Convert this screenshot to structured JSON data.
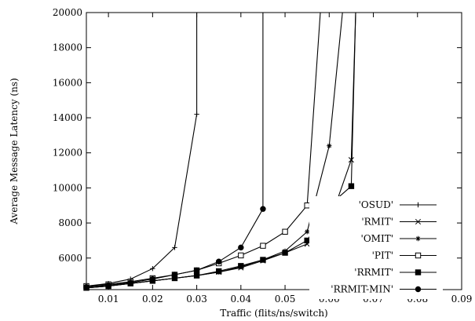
{
  "chart_data": {
    "type": "line",
    "title": "",
    "xlabel": "Traffic (flits/ns/switch)",
    "ylabel": "Average Message Latency (ns)",
    "xlim": [
      0.005,
      0.09
    ],
    "ylim": [
      4200,
      20000
    ],
    "xticks": [
      0.01,
      0.02,
      0.03,
      0.04,
      0.05,
      0.06,
      0.07,
      0.08,
      0.09
    ],
    "xtick_labels": [
      "0.01",
      "0.02",
      "0.03",
      "0.04",
      "0.05",
      "0.06",
      "0.07",
      "0.08",
      "0.09"
    ],
    "yticks": [
      6000,
      8000,
      10000,
      12000,
      14000,
      16000,
      18000,
      20000
    ],
    "ytick_labels": [
      "6000",
      "8000",
      "10000",
      "12000",
      "14000",
      "16000",
      "18000",
      "20000"
    ],
    "grid": false,
    "legend_position": "bottom-right",
    "series": [
      {
        "name": "'OSUD'",
        "marker": "plus",
        "x": [
          0.005,
          0.01,
          0.015,
          0.02,
          0.025,
          0.03,
          0.03
        ],
        "y": [
          4400,
          4550,
          4800,
          5400,
          6600,
          14200,
          20000
        ]
      },
      {
        "name": "'RMIT'",
        "marker": "cross",
        "x": [
          0.005,
          0.01,
          0.015,
          0.02,
          0.025,
          0.03,
          0.035,
          0.04,
          0.045,
          0.05,
          0.055,
          0.06,
          0.065,
          0.066
        ],
        "y": [
          4300,
          4400,
          4550,
          4700,
          4850,
          5000,
          5200,
          5450,
          5850,
          6300,
          6800,
          8000,
          11600,
          20000
        ]
      },
      {
        "name": "'OMIT'",
        "marker": "star",
        "x": [
          0.005,
          0.01,
          0.015,
          0.02,
          0.025,
          0.03,
          0.035,
          0.04,
          0.045,
          0.05,
          0.055,
          0.06,
          0.063
        ],
        "y": [
          4300,
          4400,
          4550,
          4700,
          4850,
          5000,
          5200,
          5500,
          5900,
          6400,
          7500,
          12400,
          20000
        ]
      },
      {
        "name": "'PIT'",
        "marker": "open-square",
        "x": [
          0.005,
          0.01,
          0.015,
          0.02,
          0.025,
          0.03,
          0.035,
          0.04,
          0.045,
          0.05,
          0.055,
          0.058
        ],
        "y": [
          4400,
          4500,
          4650,
          4850,
          5050,
          5300,
          5700,
          6150,
          6700,
          7500,
          9000,
          20000
        ]
      },
      {
        "name": "'RRMIT'",
        "marker": "filled-square",
        "x": [
          0.005,
          0.01,
          0.015,
          0.02,
          0.025,
          0.03,
          0.035,
          0.04,
          0.045,
          0.05,
          0.055,
          0.06,
          0.065,
          0.066
        ],
        "y": [
          4300,
          4400,
          4550,
          4700,
          4850,
          5000,
          5250,
          5550,
          5900,
          6300,
          7000,
          9000,
          10100,
          20000
        ]
      },
      {
        "name": "'RRMIT-MIN'",
        "marker": "filled-circle",
        "x": [
          0.005,
          0.01,
          0.015,
          0.02,
          0.025,
          0.03,
          0.035,
          0.04,
          0.045,
          0.045
        ],
        "y": [
          4350,
          4450,
          4600,
          4800,
          5050,
          5300,
          5800,
          6600,
          8800,
          20000
        ]
      }
    ]
  }
}
